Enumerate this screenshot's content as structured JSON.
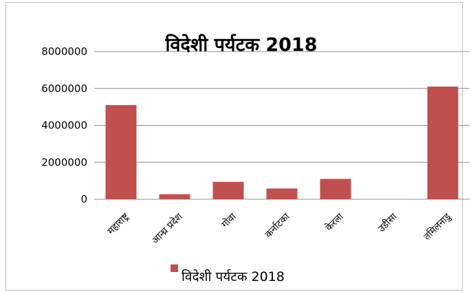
{
  "chart_data": {
    "type": "bar",
    "title": "विदेशी पर्यटक 2018",
    "categories": [
      "महाराष्ट्र",
      "आन्ध्र प्रदेश",
      "गोवा",
      "कर्नाटका",
      "केरला",
      "उडीसा",
      "तमिलनाडु"
    ],
    "series": [
      {
        "name": "विदेशी पर्यटक 2018",
        "values": [
          5100000,
          270000,
          940000,
          580000,
          1100000,
          0,
          6100000
        ],
        "color": "#c0504d"
      }
    ],
    "y_ticks": [
      "0",
      "2000000",
      "4000000",
      "6000000",
      "8000000"
    ],
    "ylim": [
      0,
      8000000
    ],
    "grid": true,
    "legend_position": "bottom",
    "xlabel": "",
    "ylabel": ""
  }
}
